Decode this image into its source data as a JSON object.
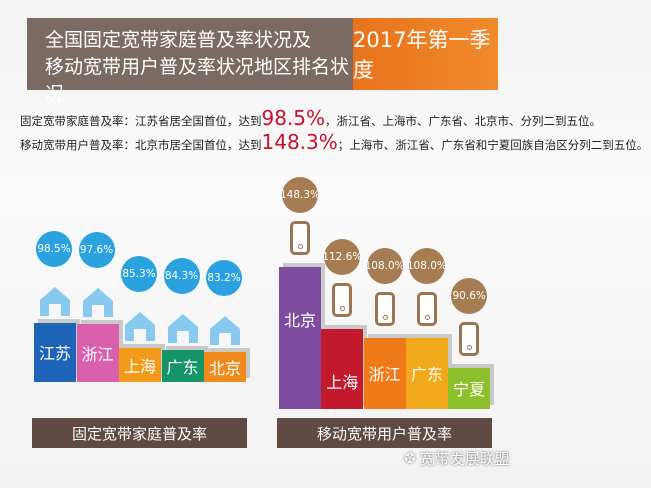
{
  "header": {
    "title_line1": "全国固定宽带家庭普及率状况及",
    "title_line2": "移动宽带用户普及率状况地区排名状况",
    "period": "2017年第一季度"
  },
  "summary": {
    "fixed": {
      "prefix": "固定宽带家庭普及率：江苏省居全国首位，达到",
      "value": "98.5%",
      "suffix": "，浙江省、上海市、广东省、北京市、分列二到五位。"
    },
    "mobile": {
      "prefix": "移动宽带用户普及率：北京市居全国首位，达到",
      "value": "148.3%",
      "suffix": "；上海市、浙江省、广东省和宁夏回族自治区分列二到五位。"
    }
  },
  "watermark": "宽带发展联盟",
  "chart_data": [
    {
      "type": "bar",
      "title": "固定宽带家庭普及率",
      "categories": [
        "江苏",
        "浙江",
        "上海",
        "广东",
        "北京"
      ],
      "values": [
        98.5,
        97.6,
        85.3,
        84.3,
        83.2
      ],
      "labels": [
        "98.5%",
        "97.6%",
        "85.3%",
        "84.3%",
        "83.2%"
      ],
      "colors": [
        "#1d64b9",
        "#d860ad",
        "#f29a1a",
        "#149468",
        "#ef8a1b"
      ],
      "bubble_color": "#2aa2e0",
      "icon": "house-icon"
    },
    {
      "type": "bar",
      "title": "移动宽带用户普及率",
      "categories": [
        "北京",
        "上海",
        "浙江",
        "广东",
        "宁夏"
      ],
      "values": [
        148.3,
        112.6,
        108.0,
        108.0,
        90.6
      ],
      "labels": [
        "148.3%",
        "112.6%",
        "108.0%",
        "108.0%",
        "90.6%"
      ],
      "colors": [
        "#7d4c9f",
        "#c2192c",
        "#f07a18",
        "#f3a91c",
        "#8dbf2b"
      ],
      "bubble_color": "#a67c52",
      "icon": "phone-icon"
    }
  ]
}
